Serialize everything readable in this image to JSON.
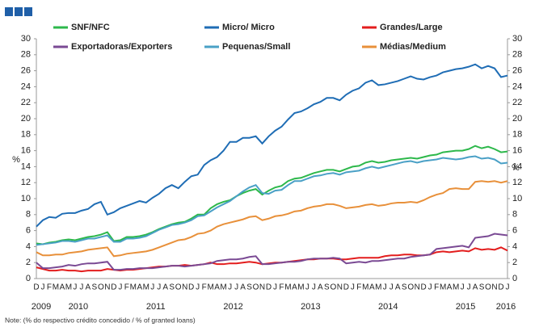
{
  "chart_data": {
    "type": "line",
    "categories": [
      "D",
      "J",
      "F",
      "M",
      "A",
      "M",
      "J",
      "J",
      "A",
      "S",
      "O",
      "N",
      "D",
      "J",
      "F",
      "M",
      "A",
      "M",
      "J",
      "J",
      "A",
      "S",
      "O",
      "N",
      "D",
      "J",
      "F",
      "M",
      "A",
      "M",
      "J",
      "J",
      "A",
      "S",
      "O",
      "N",
      "D",
      "J",
      "F",
      "M",
      "A",
      "M",
      "J",
      "J",
      "A",
      "S",
      "O",
      "N",
      "D",
      "J",
      "F",
      "M",
      "A",
      "M",
      "J",
      "J",
      "A",
      "S",
      "O",
      "N",
      "D",
      "J",
      "F",
      "M",
      "A",
      "M",
      "J",
      "J",
      "A",
      "S",
      "O",
      "N",
      "D",
      "J"
    ],
    "year_labels": [
      "2009",
      "2010",
      "2011",
      "2012",
      "2013",
      "2014",
      "2015",
      "2016"
    ],
    "y_label": "%",
    "y2_label": "%",
    "ylim": [
      0,
      30
    ],
    "yticks": [
      0,
      2,
      4,
      6,
      8,
      10,
      12,
      14,
      16,
      18,
      20,
      22,
      24,
      26,
      28,
      30
    ],
    "y2lim": [
      0,
      30
    ],
    "y2ticks": [
      0,
      2,
      4,
      6,
      8,
      10,
      12,
      14,
      16,
      18,
      20,
      22,
      24,
      26,
      28,
      30
    ],
    "grid": false,
    "note": "Note: (% do respectivo crédito concedido / % of granted loans)",
    "series": [
      {
        "name": "SNF/NFC",
        "color": "#2db84b",
        "values": [
          4.4,
          4.3,
          4.5,
          4.6,
          4.8,
          4.9,
          4.8,
          5.0,
          5.2,
          5.3,
          5.5,
          5.8,
          4.7,
          4.8,
          5.2,
          5.2,
          5.3,
          5.5,
          5.8,
          6.2,
          6.5,
          6.8,
          7.0,
          7.1,
          7.5,
          8.0,
          8.0,
          8.8,
          9.3,
          9.6,
          9.8,
          10.3,
          10.7,
          11.0,
          11.2,
          10.5,
          11.0,
          11.4,
          11.6,
          12.2,
          12.5,
          12.6,
          12.9,
          13.2,
          13.4,
          13.6,
          13.6,
          13.4,
          13.7,
          14.0,
          14.1,
          14.5,
          14.7,
          14.5,
          14.6,
          14.8,
          14.9,
          15.0,
          15.1,
          15.0,
          15.2,
          15.4,
          15.5,
          15.8,
          15.9,
          16.0,
          16.0,
          16.2,
          16.6,
          16.3,
          16.5,
          16.2,
          15.8,
          15.9
        ]
      },
      {
        "name": "Micro/ Micro",
        "color": "#1f6db5",
        "values": [
          6.5,
          7.3,
          7.7,
          7.6,
          8.1,
          8.2,
          8.2,
          8.5,
          8.7,
          9.3,
          9.6,
          8.0,
          8.3,
          8.8,
          9.1,
          9.4,
          9.7,
          9.5,
          10.1,
          10.6,
          11.3,
          11.7,
          11.3,
          12.1,
          12.8,
          13.0,
          14.2,
          14.8,
          15.2,
          16.0,
          17.1,
          17.1,
          17.6,
          17.6,
          17.8,
          16.9,
          17.8,
          18.5,
          19.0,
          19.9,
          20.7,
          20.9,
          21.3,
          21.8,
          22.1,
          22.6,
          22.6,
          22.3,
          23.0,
          23.5,
          23.8,
          24.5,
          24.8,
          24.2,
          24.3,
          24.5,
          24.7,
          25.0,
          25.3,
          25.0,
          24.9,
          25.2,
          25.4,
          25.8,
          26.0,
          26.2,
          26.3,
          26.5,
          26.8,
          26.3,
          26.6,
          26.3,
          25.2,
          25.4
        ]
      },
      {
        "name": "Grandes/Large",
        "color": "#e31d1d",
        "values": [
          1.4,
          1.2,
          1.0,
          1.0,
          1.1,
          1.0,
          1.0,
          0.9,
          1.0,
          1.0,
          1.0,
          1.2,
          1.1,
          1.0,
          1.1,
          1.1,
          1.2,
          1.3,
          1.4,
          1.5,
          1.5,
          1.6,
          1.6,
          1.7,
          1.6,
          1.7,
          1.8,
          2.0,
          1.8,
          1.8,
          1.9,
          1.9,
          2.0,
          2.1,
          2.0,
          1.8,
          1.9,
          2.0,
          2.0,
          2.1,
          2.2,
          2.3,
          2.4,
          2.4,
          2.5,
          2.5,
          2.5,
          2.4,
          2.4,
          2.5,
          2.6,
          2.6,
          2.6,
          2.6,
          2.8,
          2.9,
          2.9,
          3.0,
          3.0,
          2.9,
          2.9,
          3.0,
          3.3,
          3.4,
          3.3,
          3.4,
          3.5,
          3.4,
          3.8,
          3.6,
          3.7,
          3.6,
          3.9,
          3.5
        ]
      },
      {
        "name": "Exportadoras/Exporters",
        "color": "#7a4a94",
        "values": [
          2.0,
          1.3,
          1.3,
          1.4,
          1.5,
          1.7,
          1.6,
          1.8,
          1.9,
          1.9,
          2.0,
          2.1,
          1.1,
          1.1,
          1.2,
          1.2,
          1.3,
          1.3,
          1.3,
          1.4,
          1.5,
          1.6,
          1.6,
          1.5,
          1.6,
          1.7,
          1.8,
          1.9,
          2.2,
          2.3,
          2.4,
          2.4,
          2.5,
          2.7,
          2.8,
          1.8,
          1.8,
          1.9,
          2.0,
          2.1,
          2.1,
          2.2,
          2.4,
          2.5,
          2.5,
          2.5,
          2.6,
          2.5,
          1.9,
          2.0,
          2.1,
          2.0,
          2.2,
          2.2,
          2.3,
          2.4,
          2.5,
          2.5,
          2.7,
          2.8,
          2.9,
          3.0,
          3.7,
          3.8,
          3.9,
          4.0,
          4.1,
          3.9,
          5.1,
          5.2,
          5.3,
          5.6,
          5.5,
          5.4
        ]
      },
      {
        "name": "Pequenas/Small",
        "color": "#4aa0c6",
        "values": [
          4.2,
          4.3,
          4.4,
          4.5,
          4.7,
          4.7,
          4.6,
          4.8,
          5.0,
          5.0,
          5.2,
          5.4,
          4.6,
          4.6,
          5.0,
          5.0,
          5.1,
          5.3,
          5.7,
          6.1,
          6.4,
          6.7,
          6.8,
          7.0,
          7.3,
          7.8,
          7.9,
          8.4,
          8.9,
          9.3,
          9.7,
          10.3,
          10.9,
          11.4,
          11.7,
          10.7,
          10.6,
          11.0,
          11.1,
          11.7,
          12.2,
          12.2,
          12.5,
          12.8,
          12.9,
          13.1,
          13.2,
          13.0,
          13.3,
          13.4,
          13.5,
          13.8,
          14.0,
          13.8,
          14.0,
          14.2,
          14.4,
          14.6,
          14.7,
          14.5,
          14.7,
          14.8,
          14.9,
          15.1,
          15.0,
          14.9,
          15.0,
          15.2,
          15.3,
          15.0,
          15.1,
          14.9,
          14.4,
          14.5
        ]
      },
      {
        "name": "Médias/Medium",
        "color": "#e8903a",
        "values": [
          3.3,
          2.9,
          2.9,
          3.0,
          3.0,
          3.2,
          3.3,
          3.4,
          3.6,
          3.7,
          3.8,
          3.9,
          2.8,
          2.9,
          3.1,
          3.2,
          3.3,
          3.4,
          3.6,
          3.9,
          4.2,
          4.5,
          4.8,
          4.9,
          5.2,
          5.6,
          5.7,
          6.0,
          6.5,
          6.8,
          7.0,
          7.2,
          7.4,
          7.7,
          7.8,
          7.3,
          7.5,
          7.8,
          7.9,
          8.1,
          8.4,
          8.5,
          8.8,
          9.0,
          9.1,
          9.3,
          9.3,
          9.1,
          8.8,
          8.9,
          9.0,
          9.2,
          9.3,
          9.1,
          9.2,
          9.4,
          9.5,
          9.5,
          9.6,
          9.5,
          9.8,
          10.2,
          10.5,
          10.7,
          11.2,
          11.3,
          11.2,
          11.2,
          12.1,
          12.2,
          12.1,
          12.2,
          12.0,
          12.2
        ]
      }
    ]
  }
}
